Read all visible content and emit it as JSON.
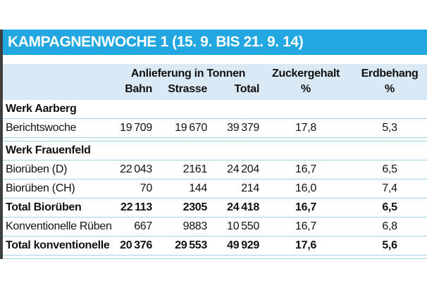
{
  "title": "KAMPAGNENWOCHE 1 (15. 9. BIS 21. 9. 14)",
  "colors": {
    "title_bar_bg": "#22a7e0",
    "title_text": "#ffffff",
    "header_bg": "#d9eaf6",
    "separator_line": "#9ed3ee",
    "left_border": "#3f3f3f",
    "body_text": "#111111"
  },
  "header": {
    "group": "Anlieferung in Tonnen",
    "zucker": "Zuckergehalt",
    "erd": "Erdbehang",
    "bahn": "Bahn",
    "strasse": "Strasse",
    "total": "Total",
    "pct1": "%",
    "pct2": "%"
  },
  "table": {
    "rows": [
      {
        "type": "section",
        "label": "Werk Aarberg"
      },
      {
        "type": "data",
        "label": "Berichtswoche",
        "bahn": "19 709",
        "strasse": "19 670",
        "total": "39 379",
        "zucker": "17,8",
        "erd": "5,3",
        "divider_after": true
      },
      {
        "type": "section",
        "label": "Werk Frauenfeld"
      },
      {
        "type": "data",
        "label": "Biorüben (D)",
        "bahn": "22 043",
        "strasse": "2161",
        "total": "24 204",
        "zucker": "16,7",
        "erd": "6,5"
      },
      {
        "type": "data",
        "label": "Biorüben (CH)",
        "bahn": "70",
        "strasse": "144",
        "total": "214",
        "zucker": "16,0",
        "erd": "7,4"
      },
      {
        "type": "total",
        "label": "Total Biorüben",
        "bahn": "22 113",
        "strasse": "2305",
        "total": "24 418",
        "zucker": "16,7",
        "erd": "6,5"
      },
      {
        "type": "data",
        "label": "Konventionelle Rüben",
        "bahn": "667",
        "strasse": "9883",
        "total": "10 550",
        "zucker": "16,7",
        "erd": "6,8"
      },
      {
        "type": "total",
        "label": "Total konventionelle",
        "bahn": "20 376",
        "strasse": "29 553",
        "total": "49 929",
        "zucker": "17,6",
        "erd": "5,6",
        "divider_after": true
      }
    ]
  },
  "chart_data": {
    "type": "table",
    "title": "KAMPAGNENWOCHE 1 (15. 9. BIS 21. 9. 14)",
    "column_groups": [
      "Anlieferung in Tonnen"
    ],
    "columns": [
      "",
      "Bahn",
      "Strasse",
      "Total",
      "Zuckergehalt %",
      "Erdbehang %"
    ],
    "rows": [
      {
        "section": "Werk Aarberg",
        "label": "Berichtswoche",
        "bahn": 19709,
        "strasse": 19670,
        "total": 39379,
        "zuckergehalt_pct": 17.8,
        "erdbehang_pct": 5.3
      },
      {
        "section": "Werk Frauenfeld",
        "label": "Biorüben (D)",
        "bahn": 22043,
        "strasse": 2161,
        "total": 24204,
        "zuckergehalt_pct": 16.7,
        "erdbehang_pct": 6.5
      },
      {
        "section": "Werk Frauenfeld",
        "label": "Biorüben (CH)",
        "bahn": 70,
        "strasse": 144,
        "total": 214,
        "zuckergehalt_pct": 16.0,
        "erdbehang_pct": 7.4
      },
      {
        "section": "Werk Frauenfeld",
        "label": "Total Biorüben",
        "bahn": 22113,
        "strasse": 2305,
        "total": 24418,
        "zuckergehalt_pct": 16.7,
        "erdbehang_pct": 6.5,
        "is_total": true
      },
      {
        "section": "Werk Frauenfeld",
        "label": "Konventionelle Rüben",
        "bahn": 667,
        "strasse": 9883,
        "total": 10550,
        "zuckergehalt_pct": 16.7,
        "erdbehang_pct": 6.8
      },
      {
        "section": "Werk Frauenfeld",
        "label": "Total konventionelle",
        "bahn": 20376,
        "strasse": 29553,
        "total": 49929,
        "zuckergehalt_pct": 17.6,
        "erdbehang_pct": 5.6,
        "is_total": true
      }
    ]
  }
}
